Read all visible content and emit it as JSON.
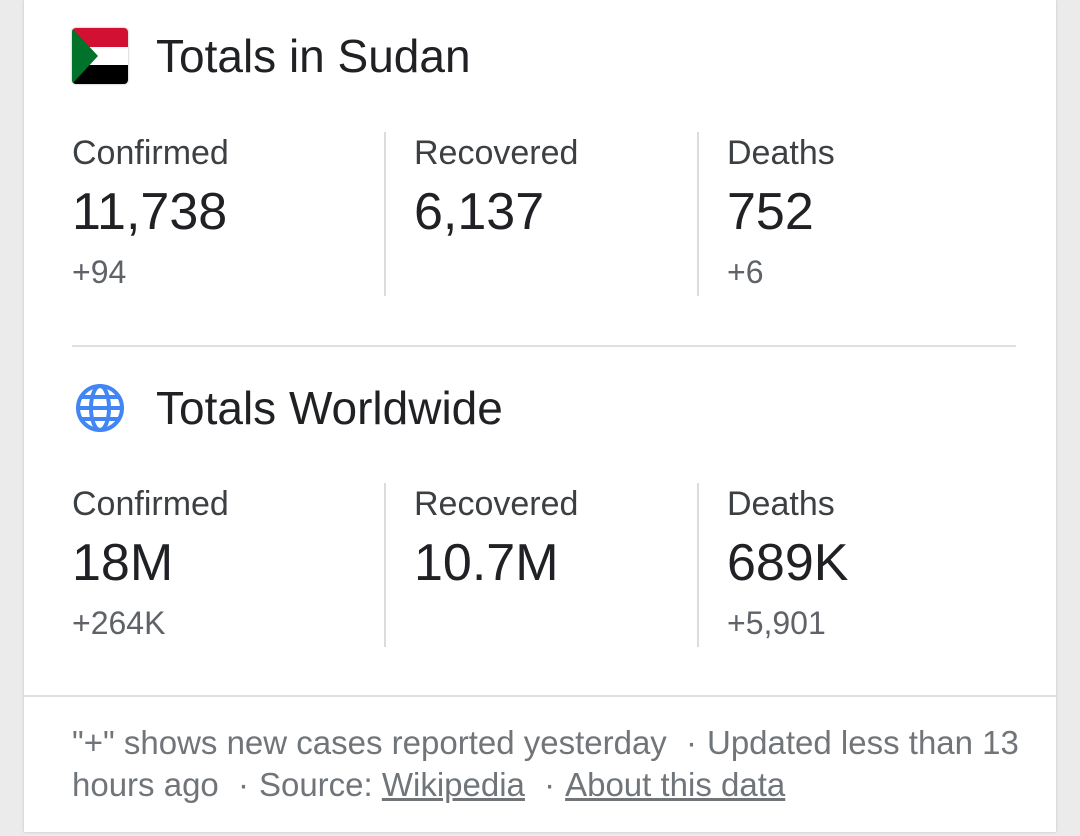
{
  "colors": {
    "flag_red": "#d21034",
    "flag_white": "#ffffff",
    "flag_black": "#000000",
    "flag_green": "#007229",
    "globe_blue": "#4285f4"
  },
  "sudan": {
    "title": "Totals in Sudan",
    "flag_icon": "sudan-flag-icon",
    "confirmed": {
      "label": "Confirmed",
      "value": "11,738",
      "delta": "+94"
    },
    "recovered": {
      "label": "Recovered",
      "value": "6,137",
      "delta": ""
    },
    "deaths": {
      "label": "Deaths",
      "value": "752",
      "delta": "+6"
    }
  },
  "worldwide": {
    "title": "Totals Worldwide",
    "globe_icon": "globe-icon",
    "confirmed": {
      "label": "Confirmed",
      "value": "18M",
      "delta": "+264K"
    },
    "recovered": {
      "label": "Recovered",
      "value": "10.7M",
      "delta": ""
    },
    "deaths": {
      "label": "Deaths",
      "value": "689K",
      "delta": "+5,901"
    }
  },
  "footer": {
    "note": "\"+\" shows new cases reported yesterday",
    "separator": "·",
    "updated": "Updated less than 13 hours ago",
    "source_label": "Source:",
    "source_link": "Wikipedia",
    "about_link": "About this data"
  }
}
